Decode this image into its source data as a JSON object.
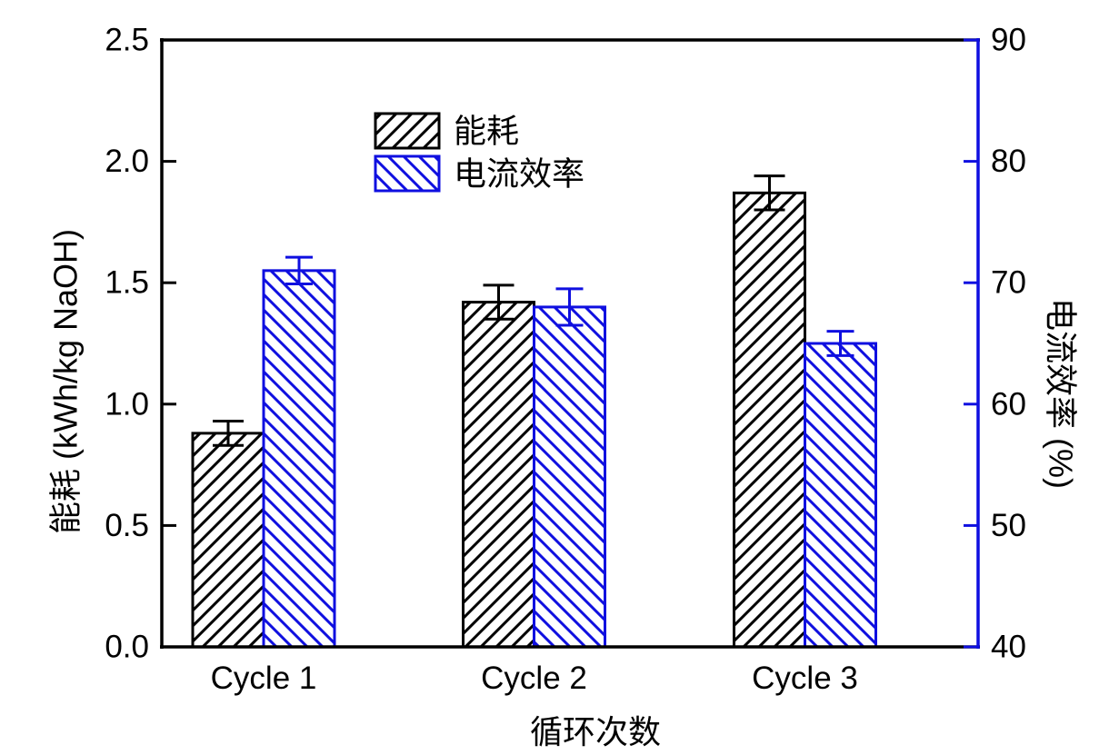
{
  "figure": {
    "background": "#ffffff",
    "black": "#000000",
    "blue": "#0f0fe0"
  },
  "chart_data": {
    "type": "bar",
    "subtype": "grouped-dual-axis",
    "categories": [
      "Cycle 1",
      "Cycle 2",
      "Cycle 3"
    ],
    "xlabel": "循环次数",
    "series": [
      {
        "key": "energy-consumption",
        "name": "能耗",
        "axis": "left",
        "color": "#000000",
        "hatch": "/",
        "values": [
          0.88,
          1.42,
          1.87
        ],
        "errors": [
          0.05,
          0.07,
          0.07
        ]
      },
      {
        "key": "current-efficiency",
        "name": "电流效率",
        "axis": "right",
        "color": "#0f0fe0",
        "hatch": "\\",
        "values": [
          71,
          68,
          65
        ],
        "errors": [
          1.1,
          1.5,
          1.0
        ]
      }
    ],
    "left_axis": {
      "label": "能耗 (kWh/kg NaOH)",
      "min": 0.0,
      "max": 2.5,
      "ticks": [
        "0.0",
        "0.5",
        "1.0",
        "1.5",
        "2.0",
        "2.5"
      ],
      "color": "#000000"
    },
    "right_axis": {
      "label": "电流效率 (%)",
      "min": 40,
      "max": 90,
      "ticks": [
        "40",
        "50",
        "60",
        "70",
        "80",
        "90"
      ],
      "color": "#0f0fe0"
    },
    "legend": {
      "position": "upper-center-left",
      "entries": [
        "能耗",
        "电流效率"
      ]
    },
    "grid": false
  }
}
